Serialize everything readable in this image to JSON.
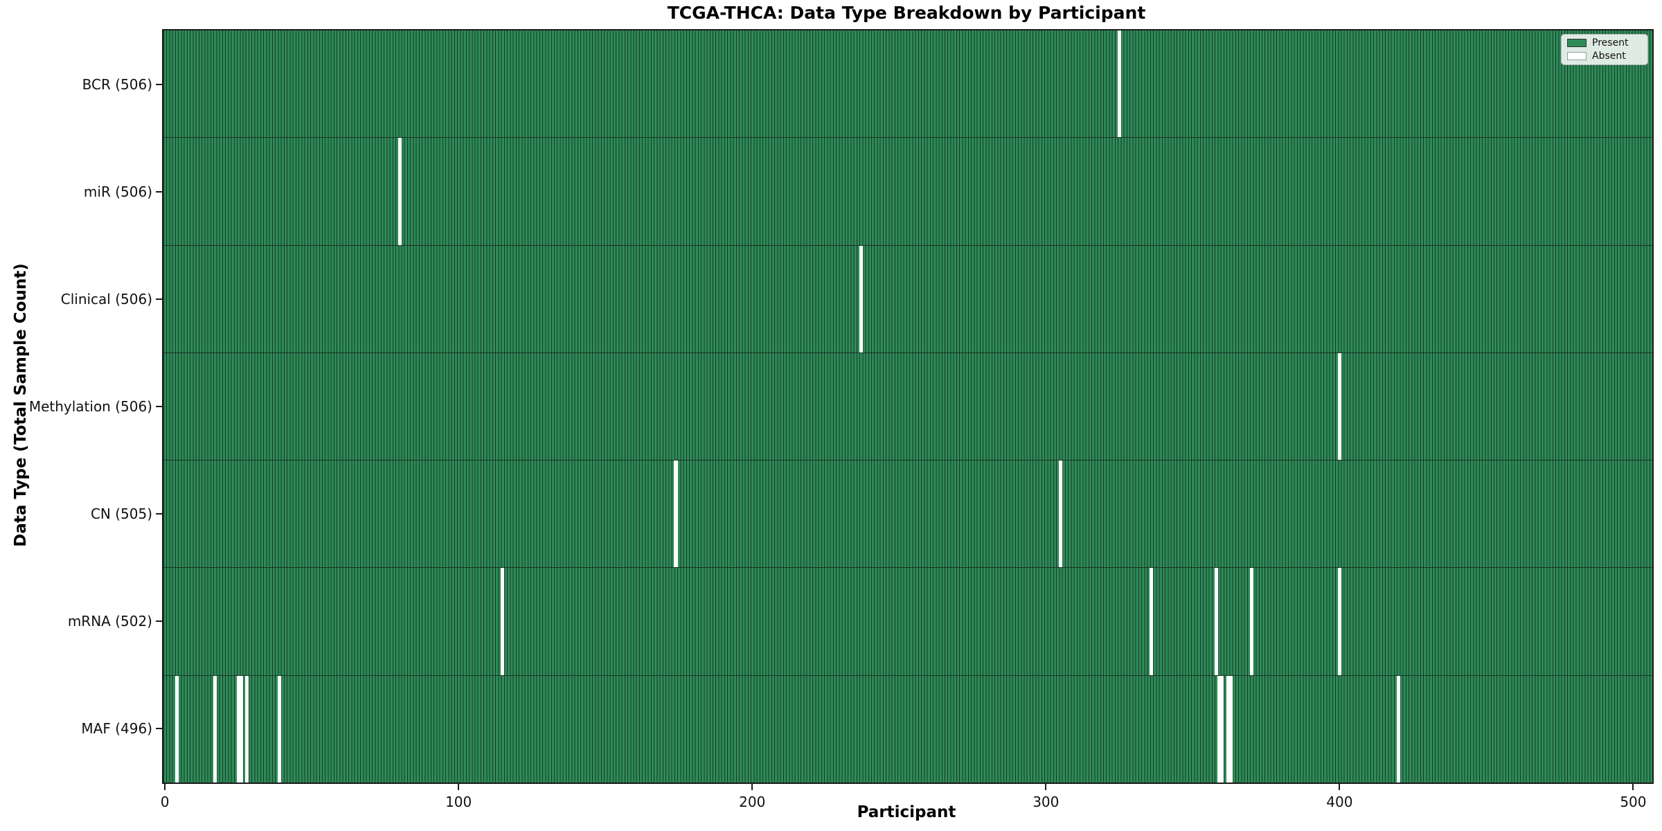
{
  "figure": {
    "title": "TCGA-THCA: Data Type Breakdown by Participant",
    "xlabel": "Participant",
    "ylabel": "Data Type (Total Sample Count)"
  },
  "legend": {
    "items": [
      {
        "label": "Present",
        "color": "#2e8b57",
        "edge": "#333333"
      },
      {
        "label": "Absent",
        "color": "#ffffff",
        "edge": "#999999"
      }
    ]
  },
  "colors": {
    "present": "#2e8b57",
    "absent": "#ffffff",
    "bar_edge": "#17382a",
    "axis": "#1c1c1c"
  },
  "chart_data": {
    "type": "heatmap",
    "title": "TCGA-THCA: Data Type Breakdown by Participant",
    "xlabel": "Participant",
    "ylabel": "Data Type (Total Sample Count)",
    "legend": [
      "Present",
      "Absent"
    ],
    "legend_position": "upper-right",
    "grid": false,
    "n_participants": 507,
    "xlim": [
      -0.5,
      506.5
    ],
    "x_ticks": [
      0,
      100,
      200,
      300,
      400,
      500
    ],
    "rows": [
      {
        "label": "BCR (506)",
        "data_type": "BCR",
        "total_sample_count": 506,
        "absent_participants": [
          325
        ]
      },
      {
        "label": "miR (506)",
        "data_type": "miR",
        "total_sample_count": 506,
        "absent_participants": [
          80
        ]
      },
      {
        "label": "Clinical (506)",
        "data_type": "Clinical",
        "total_sample_count": 506,
        "absent_participants": [
          237
        ]
      },
      {
        "label": "Methylation (506)",
        "data_type": "Methylation",
        "total_sample_count": 506,
        "absent_participants": [
          400
        ]
      },
      {
        "label": "CN (505)",
        "data_type": "CN",
        "total_sample_count": 505,
        "absent_participants": [
          174,
          305
        ]
      },
      {
        "label": "mRNA (502)",
        "data_type": "mRNA",
        "total_sample_count": 502,
        "absent_participants": [
          115,
          336,
          358,
          370,
          400
        ]
      },
      {
        "label": "MAF (496)",
        "data_type": "MAF",
        "total_sample_count": 496,
        "absent_participants": [
          4,
          17,
          25,
          26,
          28,
          39,
          359,
          360,
          362,
          363,
          420
        ]
      }
    ]
  }
}
